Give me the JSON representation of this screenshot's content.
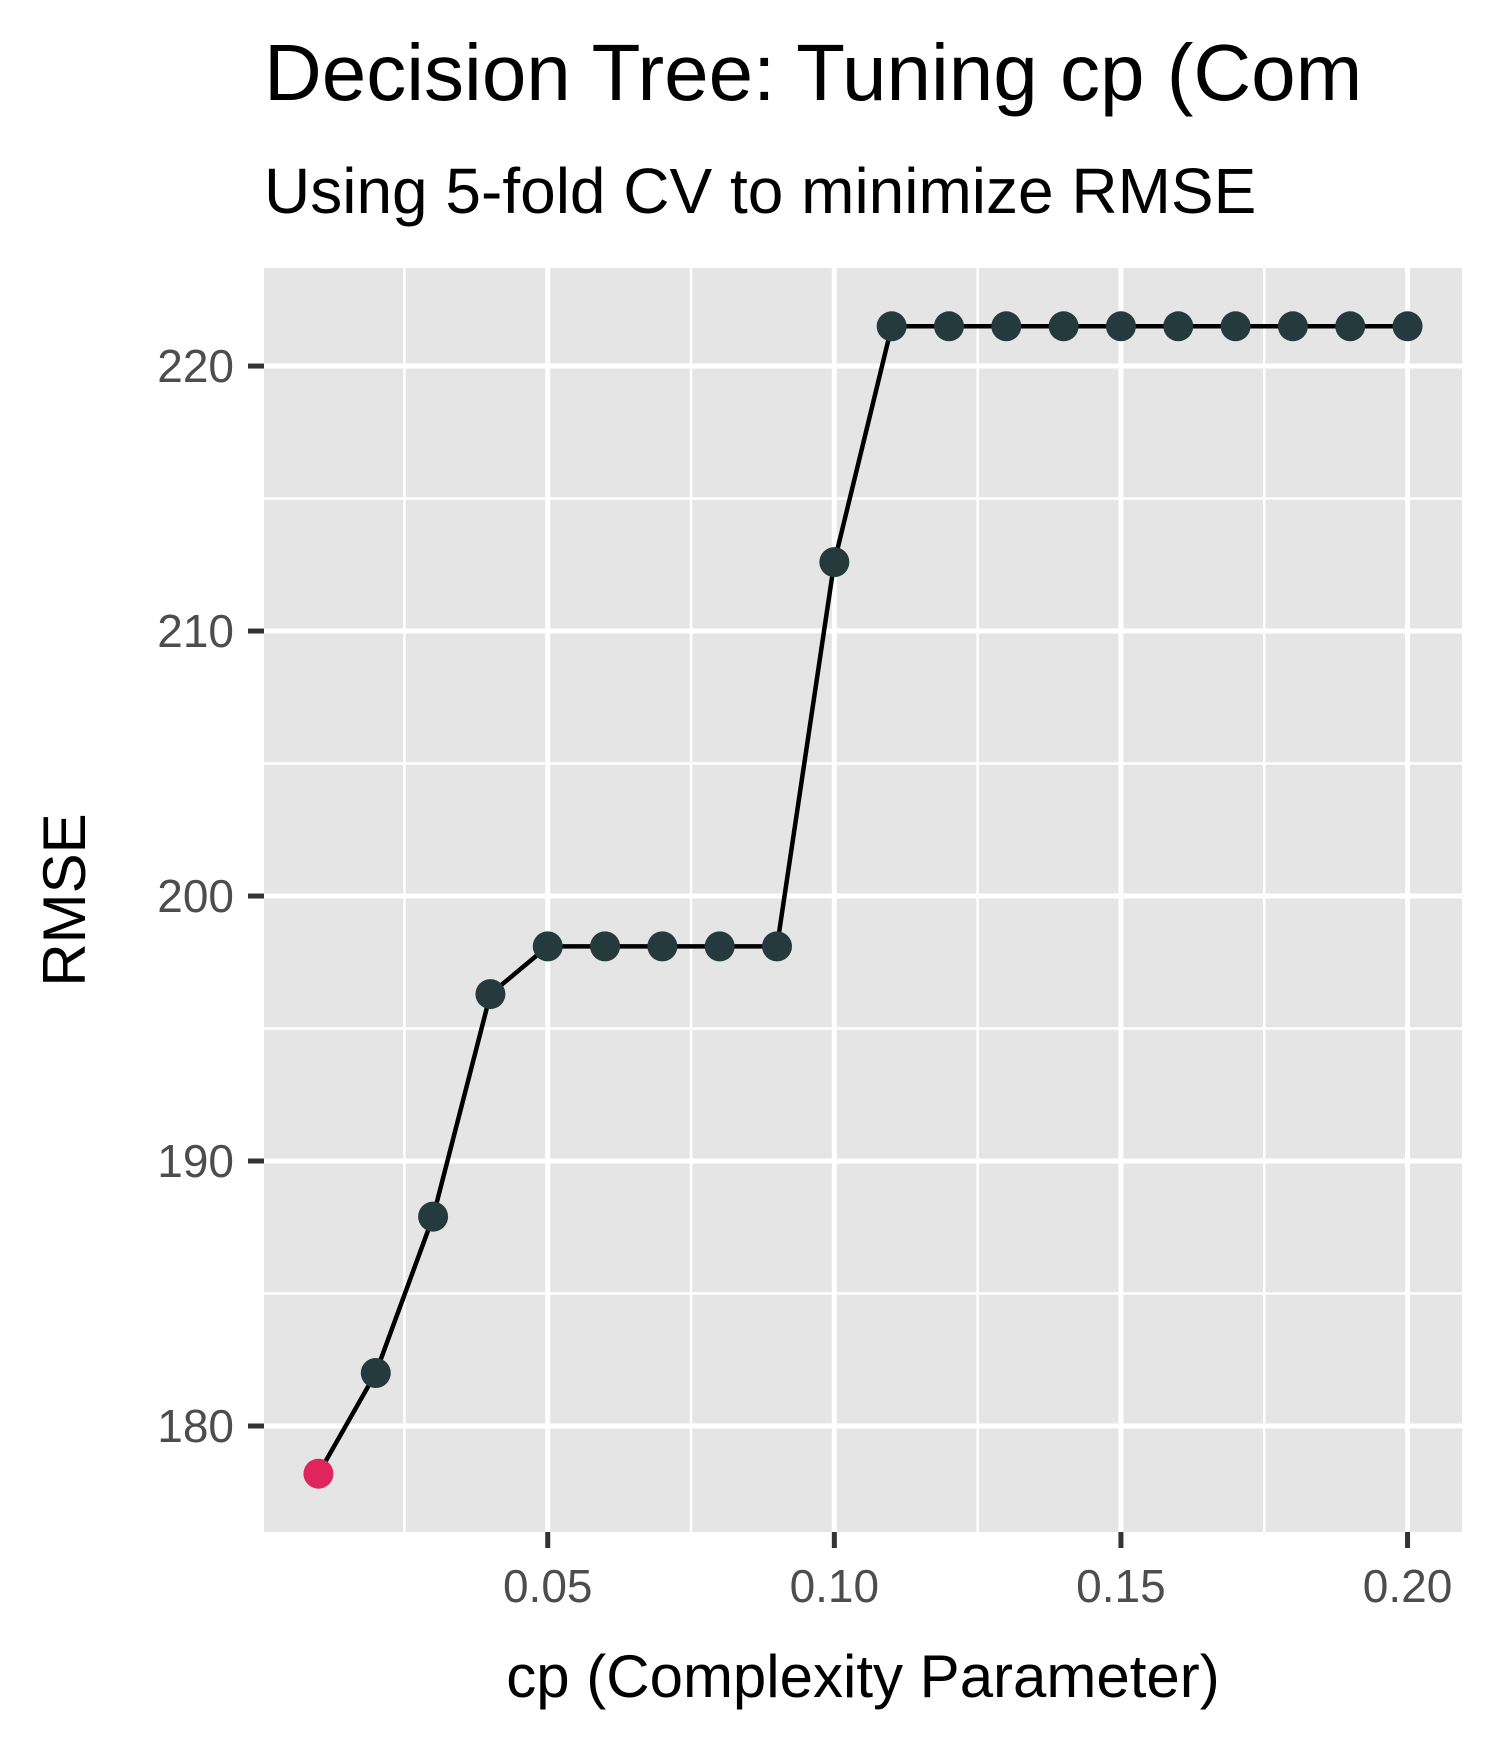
{
  "chart_data": {
    "type": "line",
    "title": "Decision Tree: Tuning cp (Com",
    "subtitle": "Using 5-fold CV to minimize RMSE",
    "xlabel": "cp (Complexity Parameter)",
    "ylabel": "RMSE",
    "xlim": [
      0.0005,
      0.2095
    ],
    "ylim": [
      176.0,
      223.7
    ],
    "x_ticks": [
      0.05,
      0.1,
      0.15,
      0.2
    ],
    "x_tick_labels": [
      "0.05",
      "0.10",
      "0.15",
      "0.20"
    ],
    "x_minor_ticks": [
      0.025,
      0.075,
      0.125,
      0.175
    ],
    "y_ticks": [
      180,
      190,
      200,
      210,
      220
    ],
    "y_tick_labels": [
      "180",
      "190",
      "200",
      "210",
      "220"
    ],
    "y_minor_ticks": [
      185,
      195,
      205,
      215
    ],
    "grid": true,
    "legend": "none",
    "colors": {
      "panel_background": "#e5e5e5",
      "grid_line": "#ffffff",
      "line": "#000000",
      "point": "#253a3c",
      "best_point": "#e0245e"
    },
    "series": [
      {
        "x": [
          0.01,
          0.02,
          0.03,
          0.04,
          0.05,
          0.06,
          0.07,
          0.08,
          0.09,
          0.1,
          0.11,
          0.12,
          0.13,
          0.14,
          0.15,
          0.16,
          0.17,
          0.18,
          0.19,
          0.2
        ],
        "y": [
          178.2,
          182.0,
          187.9,
          196.3,
          198.1,
          198.1,
          198.1,
          198.1,
          198.1,
          212.6,
          221.5,
          221.5,
          221.5,
          221.5,
          221.5,
          221.5,
          221.5,
          221.5,
          221.5,
          221.5
        ]
      }
    ],
    "best_point": {
      "x": 0.01,
      "y": 178.2
    }
  }
}
